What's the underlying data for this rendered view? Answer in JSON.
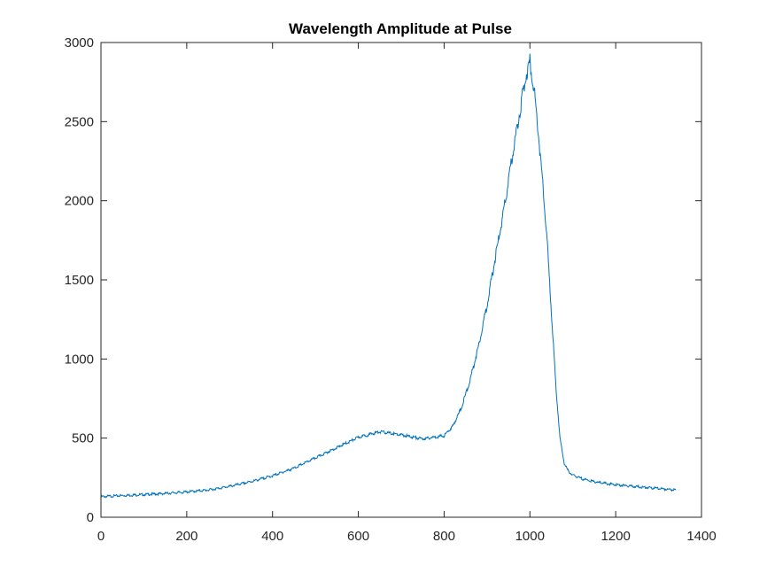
{
  "chart_data": {
    "type": "line",
    "title": "Wavelength Amplitude at Pulse",
    "xlabel": "",
    "ylabel": "",
    "xlim": [
      0,
      1400
    ],
    "ylim": [
      0,
      3000
    ],
    "xticks": [
      0,
      200,
      400,
      600,
      800,
      1000,
      1200,
      1400
    ],
    "yticks": [
      0,
      500,
      1000,
      1500,
      2000,
      2500,
      3000
    ],
    "xtick_labels": [
      "0",
      "200",
      "400",
      "600",
      "800",
      "1000",
      "1200",
      "1400"
    ],
    "ytick_labels": [
      "0",
      "500",
      "1000",
      "1500",
      "2000",
      "2500",
      "3000"
    ],
    "grid": false,
    "series": [
      {
        "color": "#0072BD",
        "x": [
          0,
          50,
          100,
          150,
          200,
          250,
          300,
          350,
          400,
          450,
          500,
          550,
          600,
          650,
          700,
          750,
          800,
          820,
          840,
          860,
          880,
          900,
          920,
          940,
          960,
          980,
          990,
          1000,
          1010,
          1020,
          1030,
          1040,
          1050,
          1060,
          1070,
          1080,
          1090,
          1100,
          1120,
          1140,
          1160,
          1200,
          1250,
          1300,
          1340
        ],
        "y": [
          130,
          137,
          143,
          150,
          160,
          172,
          195,
          225,
          262,
          310,
          375,
          440,
          505,
          540,
          520,
          495,
          515,
          575,
          690,
          860,
          1080,
          1340,
          1650,
          1950,
          2300,
          2620,
          2780,
          2880,
          2700,
          2420,
          2100,
          1750,
          1300,
          850,
          500,
          340,
          290,
          265,
          245,
          230,
          220,
          205,
          193,
          182,
          172
        ]
      }
    ]
  }
}
